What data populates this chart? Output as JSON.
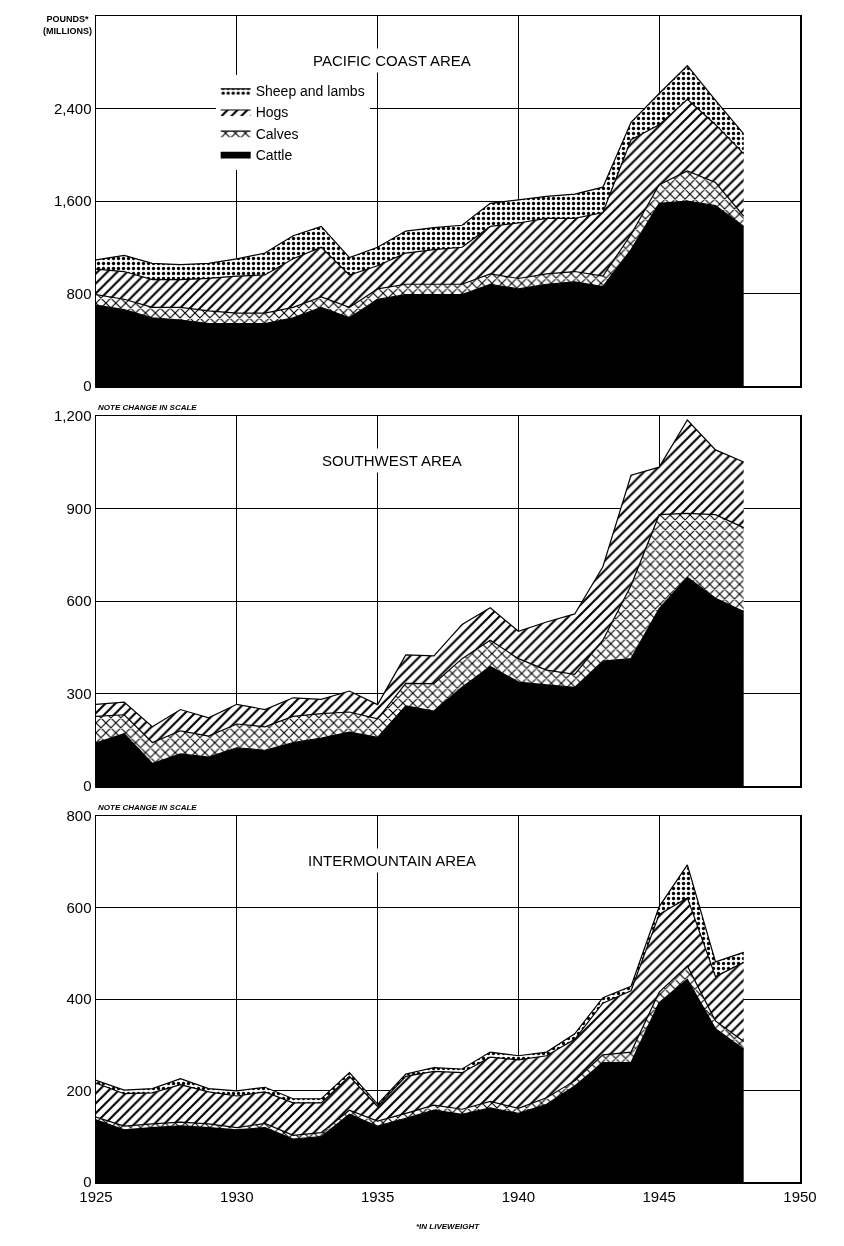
{
  "chart_data": [
    {
      "type": "area",
      "title": "PACIFIC COAST AREA",
      "ylabel": "POUNDS*\n(MILLIONS)",
      "stacked": true,
      "legend": "top left",
      "grid": true,
      "tick_labels": "y",
      "x": [
        1925,
        1926,
        1927,
        1928,
        1929,
        1930,
        1931,
        1932,
        1933,
        1934,
        1935,
        1936,
        1937,
        1938,
        1939,
        1940,
        1941,
        1942,
        1943,
        1944,
        1945,
        1946,
        1947,
        1948
      ],
      "xlim": [
        1925,
        1950
      ],
      "xticks": [
        1925,
        1930,
        1935,
        1940,
        1945,
        1950
      ],
      "ylim": [
        0,
        3200
      ],
      "yticks": [
        0,
        800,
        {
          "value": 1600,
          "label": "1,600"
        },
        {
          "value": 2400,
          "label": "2,400"
        },
        {
          "value": 3200,
          "label": null
        }
      ],
      "series": [
        {
          "name": "Cattle",
          "color": "#000000",
          "values": [
            700,
            660,
            590,
            570,
            540,
            540,
            540,
            590,
            680,
            590,
            750,
            790,
            790,
            790,
            880,
            840,
            880,
            900,
            860,
            1180,
            1580,
            1600,
            1560,
            1380
          ]
        },
        {
          "name": "Calves",
          "color": "#000000",
          "values": [
            90,
            90,
            90,
            110,
            110,
            90,
            90,
            90,
            90,
            90,
            90,
            90,
            90,
            90,
            90,
            90,
            90,
            90,
            90,
            130,
            160,
            260,
            200,
            90
          ]
        },
        {
          "name": "Hogs",
          "color": "#000000",
          "values": [
            220,
            240,
            240,
            240,
            280,
            320,
            330,
            420,
            430,
            280,
            200,
            270,
            300,
            320,
            410,
            480,
            480,
            460,
            550,
            820,
            520,
            620,
            500,
            540
          ]
        },
        {
          "name": "Sheep and lambs",
          "color": "#000000",
          "values": [
            80,
            140,
            140,
            130,
            130,
            150,
            190,
            200,
            180,
            150,
            160,
            190,
            190,
            190,
            200,
            200,
            190,
            210,
            220,
            150,
            270,
            290,
            210,
            170
          ]
        }
      ]
    },
    {
      "type": "area",
      "title": "SOUTHWEST AREA",
      "stacked": true,
      "grid": true,
      "tick_labels": "y",
      "annotations": [
        "NOTE CHANGE IN SCALE"
      ],
      "x": [
        1925,
        1926,
        1927,
        1928,
        1929,
        1930,
        1931,
        1932,
        1933,
        1934,
        1935,
        1936,
        1937,
        1938,
        1939,
        1940,
        1941,
        1942,
        1943,
        1944,
        1945,
        1946,
        1947,
        1948
      ],
      "xlim": [
        1925,
        1950
      ],
      "xticks": [
        1925,
        1930,
        1935,
        1940,
        1945,
        1950
      ],
      "ylim": [
        0,
        1200
      ],
      "yticks": [
        0,
        300,
        600,
        900,
        {
          "value": 1200,
          "label": "1,200"
        }
      ],
      "series": [
        {
          "color": "#000000",
          "values": [
            140,
            170,
            73,
            104,
            94,
            124,
            116,
            141,
            155,
            175,
            158,
            260,
            243,
            320,
            388,
            337,
            328,
            320,
            405,
            413,
            575,
            677,
            609,
            566
          ]
        },
        {
          "color": "#000000",
          "values": [
            86,
            61,
            68,
            75,
            68,
            77,
            76,
            85,
            80,
            65,
            60,
            73,
            89,
            93,
            85,
            76,
            48,
            42,
            68,
            237,
            305,
            207,
            271,
            272
          ]
        },
        {
          "color": "#000000",
          "values": [
            39,
            41,
            51,
            69,
            59,
            64,
            56,
            60,
            46,
            68,
            46,
            92,
            90,
            111,
            105,
            89,
            156,
            196,
            238,
            358,
            154,
            303,
            210,
            213
          ]
        }
      ]
    },
    {
      "type": "area",
      "title": "INTERMOUNTAIN AREA",
      "stacked": true,
      "grid": true,
      "annotations": [
        "NOTE CHANGE IN SCALE",
        "*IN LIVEWEIGHT"
      ],
      "x": [
        1925,
        1926,
        1927,
        1928,
        1929,
        1930,
        1931,
        1932,
        1933,
        1934,
        1935,
        1936,
        1937,
        1938,
        1939,
        1940,
        1941,
        1942,
        1943,
        1944,
        1945,
        1946,
        1947,
        1948
      ],
      "xlim": [
        1925,
        1950
      ],
      "xticks": [
        1925,
        1930,
        1935,
        1940,
        1945,
        1950
      ],
      "ylim": [
        0,
        800
      ],
      "yticks": [
        0,
        200,
        400,
        600,
        800
      ],
      "series": [
        {
          "color": "#000000",
          "values": [
            136,
            114,
            119,
            123,
            119,
            114,
            119,
            94,
            99,
            148,
            122,
            139,
            157,
            148,
            162,
            150,
            170,
            210,
            261,
            261,
            392,
            443,
            335,
            290
          ]
        },
        {
          "color": "#000000",
          "values": [
            6,
            8,
            8,
            8,
            8,
            5,
            9,
            8,
            9,
            9,
            11,
            11,
            11,
            11,
            14,
            11,
            14,
            11,
            17,
            23,
            23,
            29,
            17,
            17
          ]
        },
        {
          "color": "#000000",
          "values": [
            74,
            71,
            68,
            82,
            70,
            69,
            69,
            71,
            65,
            74,
            32,
            81,
            74,
            80,
            97,
            106,
            92,
            91,
            113,
            134,
            170,
            149,
            97,
            173
          ]
        },
        {
          "color": "#000000",
          "values": [
            6,
            8,
            9,
            13,
            7,
            11,
            10,
            9,
            9,
            8,
            5,
            5,
            8,
            8,
            11,
            9,
            8,
            12,
            12,
            10,
            17,
            72,
            32,
            22
          ]
        }
      ]
    }
  ]
}
